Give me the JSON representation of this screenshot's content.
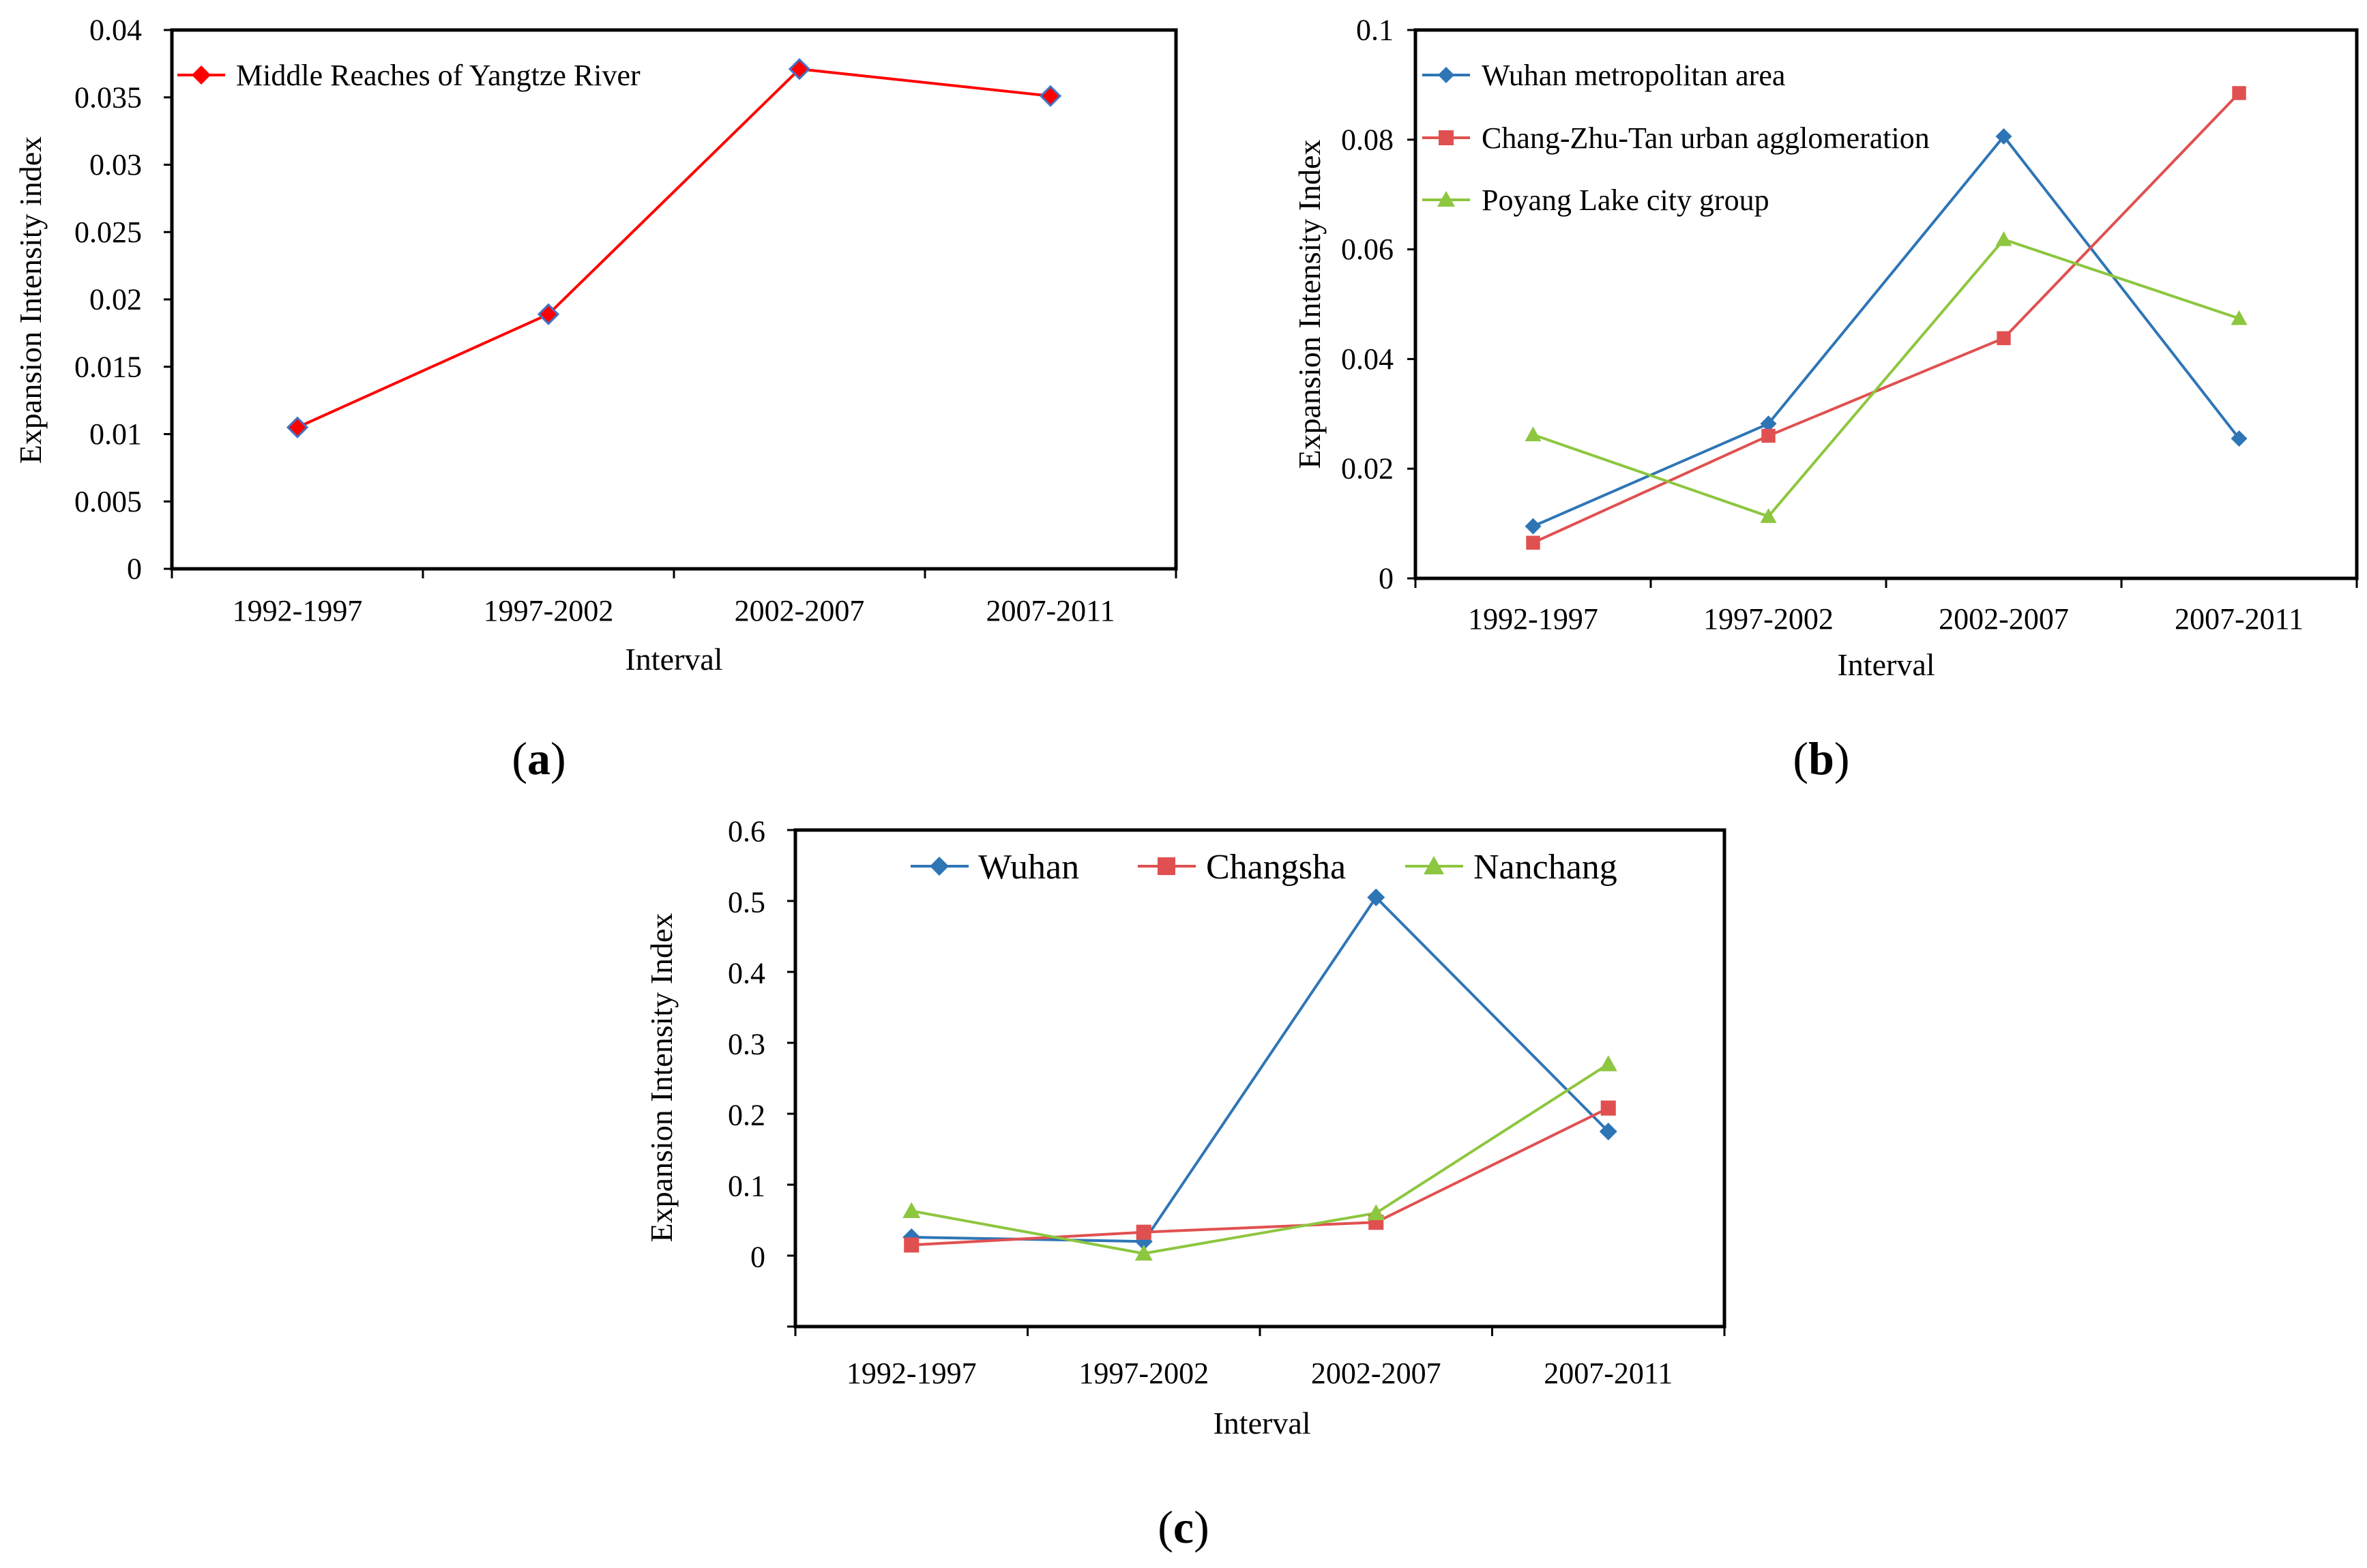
{
  "chart_data": [
    {
      "id": "a",
      "type": "line",
      "caption_letter": "a",
      "categories": [
        "1992-1997",
        "1997-2002",
        "2002-2007",
        "2007-2011"
      ],
      "xlabel": "Interval",
      "ylabel": "Expansion Intensity index",
      "ylim": [
        0,
        0.04
      ],
      "yticks": [
        "0",
        "0.005",
        "0.01",
        "0.015",
        "0.02",
        "0.025",
        "0.03",
        "0.035",
        "0.04"
      ],
      "legend_position": "top-left",
      "series": [
        {
          "name": "Middle Reaches of Yangtze River",
          "color": "#ff0000",
          "marker": "diamond",
          "marker_fill": "#ff0000",
          "marker_stroke": "#4472c4",
          "values": [
            0.0105,
            0.0189,
            0.0371,
            0.0351
          ]
        }
      ]
    },
    {
      "id": "b",
      "type": "line",
      "caption_letter": "b",
      "categories": [
        "1992-1997",
        "1997-2002",
        "2002-2007",
        "2007-2011"
      ],
      "xlabel": "Interval",
      "ylabel": "Expansion Intensity Index",
      "ylim": [
        0,
        0.1
      ],
      "yticks": [
        "0",
        "0.02",
        "0.04",
        "0.06",
        "0.08",
        "0.1"
      ],
      "legend_position": "top-left",
      "series": [
        {
          "name": "Wuhan metropolitan area",
          "color": "#2e75b6",
          "marker": "diamond",
          "values": [
            0.0095,
            0.0282,
            0.0806,
            0.0255
          ]
        },
        {
          "name": "Chang-Zhu-Tan urban agglomeration",
          "color": "#e05050",
          "marker": "square",
          "values": [
            0.0065,
            0.026,
            0.0438,
            0.0885
          ]
        },
        {
          "name": "Poyang Lake city group",
          "color": "#8dc63f",
          "marker": "triangle",
          "values": [
            0.0262,
            0.0113,
            0.0618,
            0.0474
          ]
        }
      ]
    },
    {
      "id": "c",
      "type": "line",
      "caption_letter": "c",
      "categories": [
        "1992-1997",
        "1997-2002",
        "2002-2007",
        "2007-2011"
      ],
      "xlabel": "Interval",
      "ylabel": "Expansion Intensity Index",
      "ylim": [
        -0.1,
        0.6
      ],
      "yticks": [
        "0",
        "0.1",
        "0.2",
        "0.3",
        "0.4",
        "0.5",
        "0.6"
      ],
      "legend_position": "top",
      "series": [
        {
          "name": "Wuhan",
          "color": "#2e75b6",
          "marker": "diamond",
          "values": [
            0.026,
            0.02,
            0.505,
            0.175
          ]
        },
        {
          "name": "Changsha",
          "color": "#e05050",
          "marker": "square",
          "values": [
            0.015,
            0.033,
            0.047,
            0.208
          ]
        },
        {
          "name": "Nanchang",
          "color": "#8dc63f",
          "marker": "triangle",
          "values": [
            0.063,
            0.003,
            0.06,
            0.27
          ]
        }
      ]
    }
  ]
}
